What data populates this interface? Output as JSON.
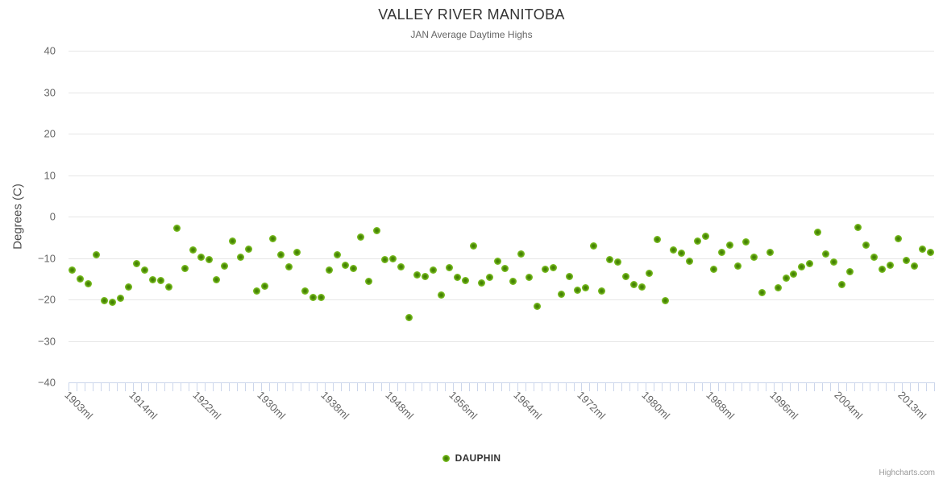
{
  "header": {
    "title": "VALLEY RIVER MANITOBA",
    "subtitle": "JAN Average Daytime Highs"
  },
  "legend": {
    "series_label": "DAUPHIN"
  },
  "credit": "Highcharts.com",
  "colors": {
    "marker_green": "#74b81d",
    "marker_core_green": "#3e7a02",
    "gridline": "#e6e6e6",
    "axis_line_and_ticks": "#ccd6eb",
    "axis_label_text": "#666666",
    "title_text": "#333333",
    "subtitle_text": "#666666",
    "credit_text": "#999999",
    "background": "#ffffff"
  },
  "chart_data": {
    "type": "scatter",
    "title": "VALLEY RIVER MANITOBA",
    "subtitle": "JAN Average Daytime Highs",
    "xlabel": "",
    "ylabel": "Degrees (C)",
    "ylim": [
      -40,
      40
    ],
    "y_ticks": [
      40,
      30,
      20,
      10,
      0,
      -10,
      -20,
      -30,
      -40
    ],
    "grid": "horizontal-only",
    "legend_position": "bottom-center",
    "n_points": 108,
    "x_tick_labels": [
      "1903ml",
      "1914ml",
      "1922ml",
      "1930ml",
      "1938ml",
      "1948ml",
      "1956ml",
      "1964ml",
      "1972ml",
      "1980ml",
      "1988ml",
      "1996ml",
      "2004ml",
      "2013ml"
    ],
    "x_tick_label_indices": [
      0,
      8,
      16,
      24,
      32,
      40,
      48,
      56,
      64,
      72,
      80,
      88,
      96,
      104
    ],
    "series": [
      {
        "name": "DAUPHIN",
        "color": "#74b81d",
        "values": [
          -13.0,
          -15.0,
          -16.3,
          -9.2,
          -20.2,
          -20.7,
          -19.8,
          -17.0,
          -11.4,
          -12.9,
          -15.3,
          -15.5,
          -16.9,
          -2.8,
          -12.5,
          -8.0,
          -9.9,
          -10.4,
          -15.2,
          -12.0,
          -5.9,
          -9.9,
          -7.8,
          -17.9,
          -16.8,
          -5.4,
          -9.3,
          -12.1,
          -8.7,
          -17.9,
          -19.5,
          -19.6,
          -13.0,
          -9.2,
          -11.8,
          -12.6,
          -4.9,
          -15.7,
          -3.4,
          -10.4,
          -10.2,
          -12.1,
          -24.4,
          -14.0,
          -14.4,
          -12.9,
          -18.9,
          -12.3,
          -14.6,
          -15.4,
          -7.0,
          -16.1,
          -14.7,
          -10.8,
          -12.5,
          -15.7,
          -9.1,
          -14.6,
          -21.6,
          -12.7,
          -12.4,
          -18.8,
          -14.4,
          -17.8,
          -17.1,
          -7.1,
          -17.9,
          -10.4,
          -10.9,
          -14.5,
          -16.4,
          -16.9,
          -13.7,
          -5.5,
          -20.2,
          -8.1,
          -8.8,
          -10.7,
          -5.9,
          -4.7,
          -12.8,
          -8.6,
          -6.9,
          -11.9,
          -6.2,
          -9.9,
          -18.3,
          -8.6,
          -17.1,
          -14.8,
          -13.8,
          -12.1,
          -11.4,
          -3.8,
          -9.0,
          -10.9,
          -16.5,
          -13.3,
          -2.7,
          -6.8,
          -9.9,
          -12.8,
          -11.8,
          -5.3,
          -10.6,
          -12.0,
          -7.8,
          -8.7
        ]
      }
    ]
  }
}
